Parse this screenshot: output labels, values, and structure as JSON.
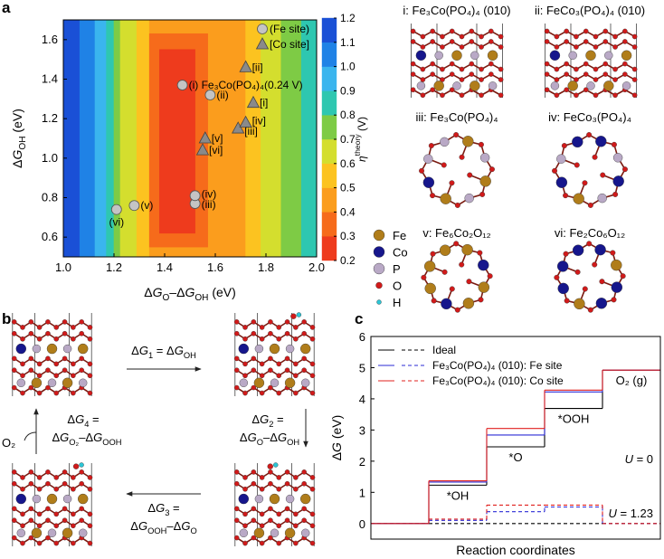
{
  "panel_labels": [
    "a",
    "b",
    "c"
  ],
  "structures": {
    "captions": [
      "i: Fe₃Co(PO₄)₄ (010)",
      "ii: FeCo₃(PO₄)₄ (010)",
      "iii: Fe₃Co(PO₄)₄",
      "iv: FeCo₃(PO₄)₄",
      "v: Fe₆Co₂O₁₂",
      "vi: Fe₂Co₆O₁₂"
    ],
    "elements": [
      "Fe",
      "Co",
      "P",
      "O",
      "H"
    ],
    "element_colors": [
      "#b07d1a",
      "#16168c",
      "#b9a9c6",
      "#d11a1a",
      "#2cc6d6"
    ]
  },
  "cycle": {
    "dg1": [
      "Δ",
      {
        "i": "G"
      },
      {
        "sub": "1"
      },
      " = Δ",
      {
        "i": "G"
      },
      {
        "sub": "OH"
      }
    ],
    "dg2": [
      "Δ",
      {
        "i": "G"
      },
      {
        "sub": "2"
      },
      " ="
    ],
    "dg2_expr": [
      "Δ",
      {
        "i": "G"
      },
      {
        "sub": "O"
      },
      "–Δ",
      {
        "i": "G"
      },
      {
        "sub": "OH"
      }
    ],
    "dg3": [
      "Δ",
      {
        "i": "G"
      },
      {
        "sub": "3"
      },
      " ="
    ],
    "dg3_expr": [
      "Δ",
      {
        "i": "G"
      },
      {
        "sub": "OOH"
      },
      "–Δ",
      {
        "i": "G"
      },
      {
        "sub": "O"
      }
    ],
    "dg4": [
      "Δ",
      {
        "i": "G"
      },
      {
        "sub": "4"
      },
      " ="
    ],
    "dg4_expr": [
      "Δ",
      {
        "i": "G"
      },
      {
        "sub": "O₂"
      },
      "–Δ",
      {
        "i": "G"
      },
      {
        "sub": "OOH"
      }
    ],
    "o2": "O₂"
  },
  "chart_data": [
    {
      "type": "contour",
      "x_label": [
        "Δ",
        {
          "i": "G"
        },
        {
          "sub": "O"
        },
        "–Δ",
        {
          "i": "G"
        },
        {
          "sub": "OH"
        },
        " (eV)"
      ],
      "y_label": [
        "Δ",
        {
          "i": "G"
        },
        {
          "sub": "OH"
        },
        " (eV)"
      ],
      "xlim": [
        1.0,
        2.0
      ],
      "ylim": [
        0.5,
        1.7
      ],
      "xticks": [
        {
          "value": 1.0,
          "label": "1.0"
        },
        1.2,
        1.4,
        1.6,
        1.8,
        {
          "value": 2.0,
          "label": "2.0"
        }
      ],
      "yticks": [
        0.6,
        0.8,
        {
          "value": 1.0,
          "label": "1.0"
        },
        1.2,
        1.4,
        1.6
      ],
      "regions": [
        {
          "x": [
            1.0,
            1.065
          ],
          "y": [
            0.5,
            1.7
          ],
          "z": 1.15
        },
        {
          "x": [
            1.065,
            1.125
          ],
          "y": [
            0.5,
            1.7
          ],
          "z": 1.05
        },
        {
          "x": [
            1.125,
            1.17
          ],
          "y": [
            0.5,
            1.7
          ],
          "z": 0.95
        },
        {
          "x": [
            1.17,
            1.2
          ],
          "y": [
            0.5,
            1.7
          ],
          "z": 0.85
        },
        {
          "x": [
            1.2,
            1.225
          ],
          "y": [
            0.5,
            1.7
          ],
          "z": 0.75
        },
        {
          "x": [
            1.225,
            1.29
          ],
          "y": [
            0.5,
            1.7
          ],
          "z": 0.65
        },
        {
          "x": [
            1.29,
            1.34
          ],
          "y": [
            0.5,
            1.7
          ],
          "z": 0.55
        },
        {
          "x": [
            1.34,
            1.72
          ],
          "y": [
            0.5,
            1.7
          ],
          "z": 0.45
        },
        {
          "x": [
            1.72,
            1.78
          ],
          "y": [
            0.5,
            1.7
          ],
          "z": 0.55
        },
        {
          "x": [
            1.78,
            1.86
          ],
          "y": [
            0.5,
            1.7
          ],
          "z": 0.65
        },
        {
          "x": [
            1.86,
            1.94
          ],
          "y": [
            0.5,
            1.7
          ],
          "z": 0.75
        },
        {
          "x": [
            1.94,
            2.0
          ],
          "y": [
            0.5,
            1.7
          ],
          "z": 0.85
        },
        {
          "x": [
            1.34,
            1.57
          ],
          "y": [
            0.55,
            1.63
          ],
          "z": 0.35
        },
        {
          "x": [
            1.38,
            1.52
          ],
          "y": [
            0.62,
            1.55
          ],
          "z": 0.25
        }
      ],
      "colorbar": {
        "label": [
          {
            "i": "η"
          },
          {
            "sup": "theory"
          },
          " (V)"
        ],
        "bounds": [
          0.2,
          0.3,
          0.4,
          0.5,
          0.6,
          0.7,
          0.8,
          0.9,
          1.0,
          1.1,
          1.2
        ],
        "colors": [
          "#ee3b1d",
          "#f66b1b",
          "#fb9d1d",
          "#fcc320",
          "#d4de2e",
          "#7ecb45",
          "#2ec7b0",
          "#3ab5ee",
          "#1f82e6",
          "#1a50d6"
        ],
        "ticks": [
          0.2,
          0.3,
          0.4,
          0.5,
          0.6,
          0.7,
          0.8,
          0.9,
          {
            "value": 1.0,
            "label": "1.0"
          },
          1.1,
          1.2
        ]
      },
      "series": [
        {
          "name": "(Fe site)",
          "marker": "circle",
          "color": "#c4c4c4",
          "x": [
            1.47,
            1.58,
            1.52,
            1.52,
            1.28,
            1.21
          ],
          "y": [
            1.37,
            1.32,
            0.77,
            0.81,
            0.76,
            0.74
          ],
          "labels": [
            "(i)",
            "(ii)",
            "(iii)",
            "(iv)",
            "(v)",
            "(vi)"
          ]
        },
        {
          "name": "[Co site]",
          "marker": "triangle",
          "color": "#8a8a8a",
          "x": [
            1.75,
            1.72,
            1.69,
            1.72,
            1.56,
            1.55
          ],
          "y": [
            1.28,
            1.46,
            1.15,
            1.18,
            1.1,
            1.04
          ],
          "labels": [
            "[i]",
            "[ii]",
            "[iii]",
            "[iv]",
            "[v]",
            "[vi]"
          ]
        }
      ],
      "annotation": "Fe₃Co(PO₄)₄(0.24 V)"
    },
    {
      "type": "step",
      "x_label": "Reaction coordinates",
      "y_label": [
        "Δ",
        {
          "i": "G"
        },
        " (eV)"
      ],
      "ylim": [
        -0.5,
        6
      ],
      "yticks": [
        0,
        1,
        2,
        3,
        4,
        5,
        6
      ],
      "categories": [
        null,
        "*OH",
        "*O",
        "*OOH",
        "O₂ (g)"
      ],
      "series": [
        {
          "name": "Ideal",
          "color": "#000000",
          "values": [
            0,
            1.23,
            2.46,
            3.69,
            4.92
          ],
          "dashed_values": [
            0,
            0,
            0,
            0,
            0
          ]
        },
        {
          "name": "Fe₃Co(PO₄)₄ (010): Fe site",
          "color": "#2b2bd6",
          "values": [
            0,
            1.33,
            2.84,
            4.22,
            4.92
          ],
          "dashed_values": [
            0,
            0.1,
            0.38,
            0.53,
            0
          ]
        },
        {
          "name": "Fe₃Co(PO₄)₄ (010): Co site",
          "color": "#e0201e",
          "values": [
            0,
            1.37,
            3.05,
            4.28,
            4.92
          ],
          "dashed_values": [
            0,
            0.14,
            0.59,
            0.59,
            0
          ]
        }
      ],
      "annotations": [
        [
          {
            "i": "U"
          },
          " = 0"
        ],
        [
          {
            "i": "U"
          },
          " = 1.23"
        ]
      ]
    }
  ]
}
